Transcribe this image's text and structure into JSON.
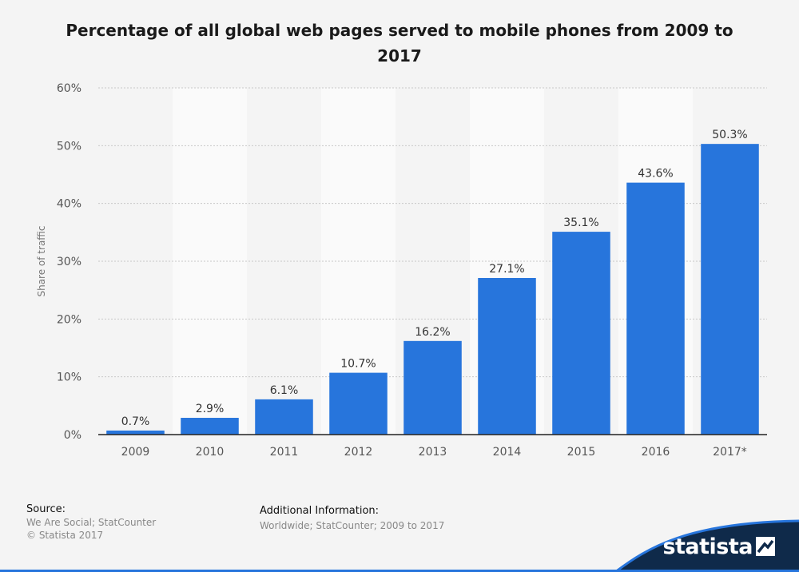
{
  "chart_data": {
    "type": "bar",
    "title": "Percentage of all global web pages served to mobile phones from 2009 to 2017",
    "xlabel": "",
    "ylabel": "Share of traffic",
    "categories": [
      "2009",
      "2010",
      "2011",
      "2012",
      "2013",
      "2014",
      "2015",
      "2016",
      "2017*"
    ],
    "values": [
      0.7,
      2.9,
      6.1,
      10.7,
      16.2,
      27.1,
      35.1,
      43.6,
      50.3
    ],
    "data_labels": [
      "0.7%",
      "2.9%",
      "6.1%",
      "10.7%",
      "16.2%",
      "27.1%",
      "35.1%",
      "43.6%",
      "50.3%"
    ],
    "ylim": [
      0,
      60
    ],
    "yticks": [
      "0%",
      "10%",
      "20%",
      "30%",
      "40%",
      "50%",
      "60%"
    ],
    "grid": true,
    "bar_color": "#2775dc",
    "legend": "none"
  },
  "footer": {
    "source_heading": "Source:",
    "source_lines": [
      "We Are Social; StatCounter",
      "© Statista 2017"
    ],
    "info_heading": "Additional Information:",
    "info_text": "Worldwide; StatCounter; 2009 to 2017"
  },
  "brand": {
    "name": "statista",
    "color": "#0f2a4a"
  }
}
